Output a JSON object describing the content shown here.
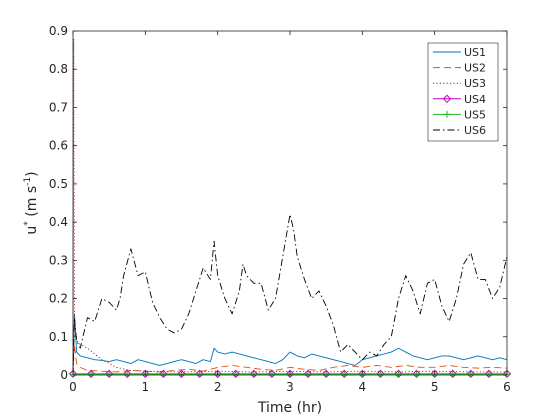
{
  "chart_data": {
    "type": "line",
    "xlabel": "Time (hr)",
    "ylabel": "u",
    "ylabel_sup": "*",
    "ylabel_units": "(m s",
    "ylabel_units_sup": "-1",
    "ylabel_units_close": ")",
    "xlim": [
      0,
      6
    ],
    "ylim": [
      0,
      0.9
    ],
    "xticks": [
      0,
      1,
      2,
      3,
      4,
      5,
      6
    ],
    "xtick_labels": [
      "0",
      "1",
      "2",
      "3",
      "4",
      "5",
      "6"
    ],
    "yticks": [
      0,
      0.1,
      0.2,
      0.3,
      0.4,
      0.5,
      0.6,
      0.7,
      0.8,
      0.9
    ],
    "ytick_labels": [
      "0",
      "0.1",
      "0.2",
      "0.3",
      "0.4",
      "0.5",
      "0.6",
      "0.7",
      "0.8",
      "0.9"
    ],
    "grid": false,
    "legend_position": "top-right",
    "series": [
      {
        "name": "US1",
        "color": "#0072bd",
        "style": "solid",
        "marker": "none",
        "x": [
          0,
          0.02,
          0.05,
          0.1,
          0.2,
          0.3,
          0.4,
          0.5,
          0.6,
          0.7,
          0.8,
          0.9,
          1.0,
          1.1,
          1.2,
          1.3,
          1.4,
          1.5,
          1.6,
          1.7,
          1.8,
          1.9,
          1.95,
          2.0,
          2.1,
          2.2,
          2.3,
          2.4,
          2.5,
          2.6,
          2.7,
          2.8,
          2.9,
          3.0,
          3.1,
          3.2,
          3.3,
          3.4,
          3.5,
          3.6,
          3.7,
          3.8,
          3.9,
          4.0,
          4.1,
          4.2,
          4.3,
          4.4,
          4.5,
          4.6,
          4.7,
          4.8,
          4.9,
          5.0,
          5.1,
          5.2,
          5.3,
          5.4,
          5.5,
          5.6,
          5.7,
          5.8,
          5.9,
          6.0
        ],
        "y": [
          0.0,
          0.16,
          0.06,
          0.05,
          0.045,
          0.04,
          0.038,
          0.035,
          0.04,
          0.035,
          0.03,
          0.04,
          0.035,
          0.03,
          0.025,
          0.03,
          0.035,
          0.04,
          0.035,
          0.03,
          0.04,
          0.035,
          0.07,
          0.06,
          0.055,
          0.06,
          0.055,
          0.05,
          0.045,
          0.04,
          0.035,
          0.03,
          0.04,
          0.06,
          0.05,
          0.045,
          0.055,
          0.05,
          0.045,
          0.04,
          0.035,
          0.03,
          0.025,
          0.04,
          0.045,
          0.05,
          0.055,
          0.06,
          0.07,
          0.06,
          0.05,
          0.045,
          0.04,
          0.045,
          0.05,
          0.05,
          0.045,
          0.04,
          0.045,
          0.05,
          0.045,
          0.04,
          0.045,
          0.04
        ]
      },
      {
        "name": "US2",
        "color": "#d95319",
        "style": "dashed",
        "marker": "none",
        "x": [
          0,
          0.02,
          0.05,
          0.1,
          0.2,
          0.4,
          0.6,
          0.8,
          1.0,
          1.2,
          1.4,
          1.6,
          1.8,
          2.0,
          2.2,
          2.4,
          2.6,
          2.8,
          3.0,
          3.2,
          3.4,
          3.6,
          3.8,
          4.0,
          4.2,
          4.4,
          4.6,
          4.8,
          5.0,
          5.2,
          5.4,
          5.6,
          5.8,
          6.0
        ],
        "y": [
          0.0,
          0.08,
          0.03,
          0.02,
          0.012,
          0.01,
          0.008,
          0.012,
          0.01,
          0.008,
          0.012,
          0.015,
          0.01,
          0.02,
          0.025,
          0.02,
          0.015,
          0.012,
          0.02,
          0.015,
          0.012,
          0.02,
          0.025,
          0.02,
          0.025,
          0.02,
          0.025,
          0.02,
          0.02,
          0.025,
          0.02,
          0.018,
          0.02,
          0.018
        ]
      },
      {
        "name": "US3",
        "color": "#a2142f",
        "style": "dotted",
        "marker": "none",
        "x": [
          0,
          0.01,
          0.02,
          0.05,
          0.1,
          0.2,
          0.4,
          0.6,
          0.8,
          1.0,
          1.5,
          2.0,
          2.5,
          3.0,
          3.5,
          4.0,
          4.5,
          5.0,
          5.5,
          6.0
        ],
        "y": [
          0.0,
          0.88,
          0.12,
          0.09,
          0.08,
          0.07,
          0.04,
          0.02,
          0.012,
          0.01,
          0.008,
          0.01,
          0.008,
          0.01,
          0.008,
          0.01,
          0.008,
          0.01,
          0.008,
          0.008
        ]
      },
      {
        "name": "US4",
        "color": "#c000c0",
        "style": "solid",
        "marker": "diamond",
        "x": [
          0,
          0.25,
          0.5,
          0.75,
          1.0,
          1.25,
          1.5,
          1.75,
          2.0,
          2.25,
          2.5,
          2.75,
          3.0,
          3.25,
          3.5,
          3.75,
          4.0,
          4.25,
          4.5,
          4.75,
          5.0,
          5.25,
          5.5,
          5.75,
          6.0
        ],
        "y": [
          0.003,
          0.003,
          0.003,
          0.003,
          0.003,
          0.003,
          0.003,
          0.003,
          0.003,
          0.003,
          0.003,
          0.003,
          0.003,
          0.003,
          0.003,
          0.003,
          0.003,
          0.003,
          0.003,
          0.003,
          0.003,
          0.003,
          0.003,
          0.003,
          0.003
        ]
      },
      {
        "name": "US5",
        "color": "#1fb81f",
        "style": "solid",
        "marker": "plus",
        "x": [
          0,
          0.25,
          0.5,
          0.75,
          1.0,
          1.25,
          1.5,
          1.75,
          2.0,
          2.25,
          2.5,
          2.75,
          3.0,
          3.25,
          3.5,
          3.75,
          4.0,
          4.25,
          4.5,
          4.75,
          5.0,
          5.25,
          5.5,
          5.75,
          6.0
        ],
        "y": [
          0.002,
          0.002,
          0.002,
          0.002,
          0.002,
          0.002,
          0.002,
          0.002,
          0.002,
          0.002,
          0.002,
          0.002,
          0.002,
          0.002,
          0.002,
          0.002,
          0.002,
          0.002,
          0.002,
          0.002,
          0.002,
          0.002,
          0.002,
          0.002,
          0.002
        ]
      },
      {
        "name": "US6",
        "color": "#000000",
        "style": "dashdot",
        "marker": "none",
        "x": [
          0,
          0.02,
          0.05,
          0.1,
          0.15,
          0.2,
          0.3,
          0.4,
          0.5,
          0.6,
          0.65,
          0.7,
          0.8,
          0.9,
          1.0,
          1.1,
          1.2,
          1.3,
          1.4,
          1.5,
          1.6,
          1.7,
          1.8,
          1.9,
          1.95,
          2.0,
          2.1,
          2.2,
          2.3,
          2.35,
          2.4,
          2.5,
          2.6,
          2.7,
          2.8,
          2.9,
          3.0,
          3.05,
          3.1,
          3.2,
          3.3,
          3.4,
          3.5,
          3.6,
          3.7,
          3.8,
          3.9,
          4.0,
          4.1,
          4.2,
          4.3,
          4.4,
          4.5,
          4.6,
          4.7,
          4.8,
          4.9,
          5.0,
          5.1,
          5.2,
          5.3,
          5.4,
          5.5,
          5.6,
          5.7,
          5.8,
          5.9,
          6.0
        ],
        "y": [
          0.0,
          0.15,
          0.09,
          0.07,
          0.11,
          0.15,
          0.14,
          0.2,
          0.19,
          0.17,
          0.2,
          0.26,
          0.33,
          0.26,
          0.27,
          0.19,
          0.15,
          0.12,
          0.11,
          0.12,
          0.16,
          0.22,
          0.28,
          0.25,
          0.35,
          0.26,
          0.2,
          0.16,
          0.22,
          0.29,
          0.26,
          0.24,
          0.24,
          0.17,
          0.2,
          0.31,
          0.42,
          0.38,
          0.31,
          0.25,
          0.2,
          0.22,
          0.18,
          0.13,
          0.06,
          0.08,
          0.06,
          0.04,
          0.06,
          0.05,
          0.08,
          0.1,
          0.2,
          0.26,
          0.22,
          0.16,
          0.24,
          0.25,
          0.18,
          0.14,
          0.2,
          0.29,
          0.32,
          0.25,
          0.25,
          0.2,
          0.23,
          0.31
        ]
      }
    ]
  }
}
